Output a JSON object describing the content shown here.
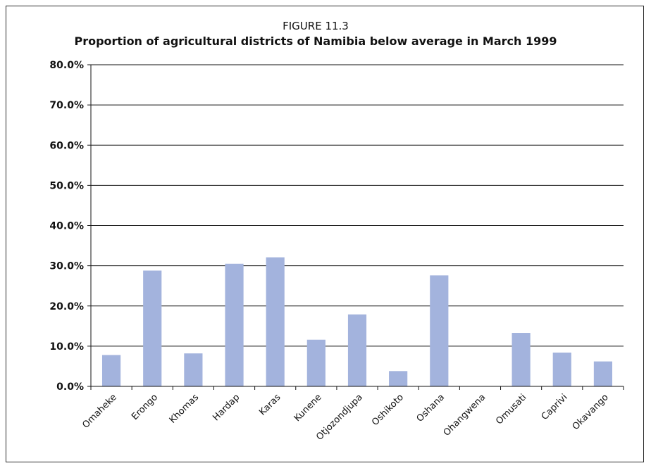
{
  "figure_label": "FIGURE 11.3",
  "chart_data": {
    "type": "bar",
    "title": "Proportion of agricultural districts of Namibia below average in March 1999",
    "xlabel": "",
    "ylabel": "",
    "categories": [
      "Omaheke",
      "Erongo",
      "Khomas",
      "Hardap",
      "Karas",
      "Kunene",
      "Otjozondjupa",
      "Oshikoto",
      "Oshana",
      "Ohangwena",
      "Omusati",
      "Caprivi",
      "Okavango"
    ],
    "values": [
      7.8,
      28.8,
      8.2,
      30.5,
      32.1,
      11.6,
      17.9,
      3.8,
      27.6,
      0.0,
      13.3,
      8.4,
      6.2
    ],
    "ylim": [
      0,
      80
    ],
    "yticks": [
      "0.0%",
      "10.0%",
      "20.0%",
      "30.0%",
      "40.0%",
      "50.0%",
      "60.0%",
      "70.0%",
      "80.0%"
    ],
    "grid": true,
    "legend": "none",
    "bar_color": "#a3b3dd"
  }
}
